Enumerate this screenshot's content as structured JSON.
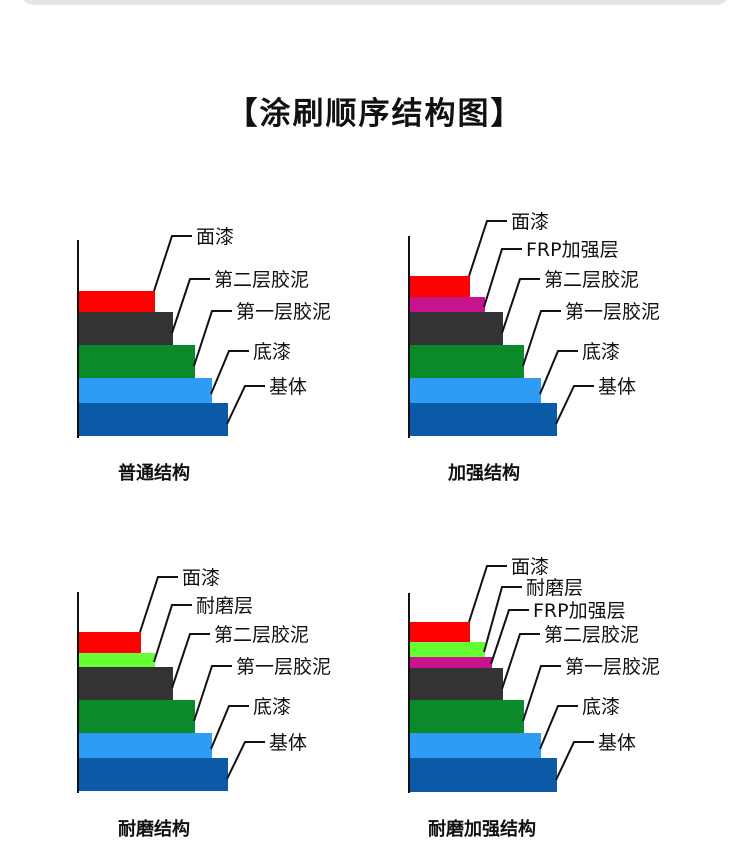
{
  "title": "【涂刷顺序结构图】",
  "colors": {
    "面漆": "#ff0000",
    "耐磨层": "#66ff33",
    "FRP加强层": "#c8148c",
    "第二层胶泥": "#333333",
    "第一层胶泥": "#0a8a2a",
    "底漆": "#2e9bf5",
    "基体": "#0a5aa8"
  },
  "diagrams": [
    {
      "caption": "普通结构",
      "layers": [
        "面漆",
        "第二层胶泥",
        "第一层胶泥",
        "底漆",
        "基体"
      ]
    },
    {
      "caption": "加强结构",
      "layers": [
        "面漆",
        "FRP加强层",
        "第二层胶泥",
        "第一层胶泥",
        "底漆",
        "基体"
      ]
    },
    {
      "caption": "耐磨结构",
      "layers": [
        "面漆",
        "耐磨层",
        "第二层胶泥",
        "第一层胶泥",
        "底漆",
        "基体"
      ]
    },
    {
      "caption": "耐磨加强结构",
      "layers": [
        "面漆",
        "耐磨层",
        "FRP加强层",
        "第二层胶泥",
        "第一层胶泥",
        "底漆",
        "基体"
      ]
    }
  ]
}
